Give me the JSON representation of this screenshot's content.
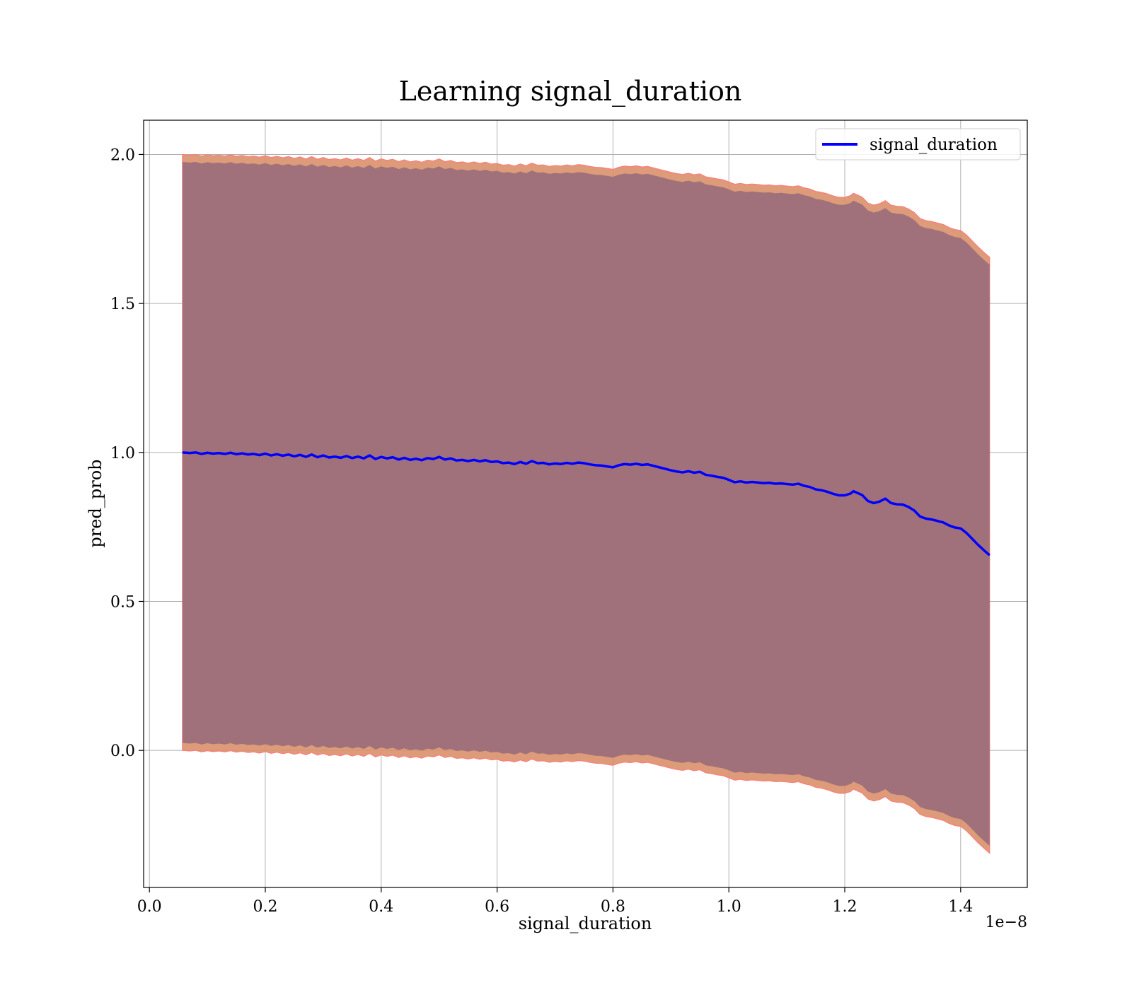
{
  "chart_data": {
    "type": "line",
    "title": "Learning signal_duration",
    "xlabel": "signal_duration",
    "ylabel": "pred_prob",
    "x_offset_text": "1e−8",
    "xlim": [
      -0.01,
      1.515
    ],
    "ylim": [
      -0.46,
      2.115
    ],
    "grid": true,
    "legend": "top-right",
    "xticks": [
      "0.0",
      "0.2",
      "0.4",
      "0.6",
      "0.8",
      "1.0",
      "1.2",
      "1.4"
    ],
    "yticks": [
      "0.0",
      "0.5",
      "1.0",
      "1.5",
      "2.0"
    ],
    "series": [
      {
        "name": "signal_duration",
        "color": "#0000ff",
        "x": [
          0.057,
          0.07,
          0.08,
          0.09,
          0.1,
          0.11,
          0.12,
          0.13,
          0.14,
          0.15,
          0.16,
          0.17,
          0.18,
          0.19,
          0.2,
          0.21,
          0.22,
          0.23,
          0.24,
          0.25,
          0.26,
          0.27,
          0.28,
          0.29,
          0.3,
          0.31,
          0.32,
          0.33,
          0.34,
          0.35,
          0.36,
          0.37,
          0.38,
          0.39,
          0.4,
          0.41,
          0.42,
          0.43,
          0.44,
          0.45,
          0.46,
          0.47,
          0.48,
          0.49,
          0.5,
          0.51,
          0.52,
          0.53,
          0.54,
          0.55,
          0.56,
          0.57,
          0.58,
          0.59,
          0.6,
          0.61,
          0.62,
          0.63,
          0.64,
          0.65,
          0.66,
          0.67,
          0.68,
          0.69,
          0.7,
          0.71,
          0.72,
          0.73,
          0.74,
          0.75,
          0.76,
          0.77,
          0.78,
          0.79,
          0.8,
          0.81,
          0.82,
          0.83,
          0.84,
          0.85,
          0.86,
          0.87,
          0.88,
          0.89,
          0.9,
          0.91,
          0.92,
          0.93,
          0.94,
          0.95,
          0.96,
          0.97,
          0.98,
          0.99,
          1.0,
          1.01,
          1.02,
          1.03,
          1.04,
          1.05,
          1.06,
          1.07,
          1.08,
          1.09,
          1.1,
          1.11,
          1.12,
          1.13,
          1.14,
          1.15,
          1.16,
          1.17,
          1.18,
          1.19,
          1.2,
          1.21,
          1.215,
          1.23,
          1.24,
          1.25,
          1.26,
          1.27,
          1.28,
          1.29,
          1.3,
          1.31,
          1.32,
          1.33,
          1.34,
          1.35,
          1.36,
          1.37,
          1.38,
          1.39,
          1.4,
          1.41,
          1.42,
          1.43,
          1.44,
          1.45
        ],
        "values": [
          1.0,
          0.998,
          1.0,
          0.995,
          0.999,
          0.996,
          0.998,
          0.995,
          0.999,
          0.994,
          0.997,
          0.993,
          0.995,
          0.991,
          0.996,
          0.99,
          0.994,
          0.989,
          0.993,
          0.987,
          0.992,
          0.985,
          0.993,
          0.984,
          0.99,
          0.983,
          0.986,
          0.982,
          0.988,
          0.981,
          0.986,
          0.98,
          0.99,
          0.978,
          0.985,
          0.98,
          0.984,
          0.976,
          0.982,
          0.975,
          0.979,
          0.974,
          0.981,
          0.978,
          0.985,
          0.976,
          0.98,
          0.973,
          0.975,
          0.971,
          0.975,
          0.97,
          0.974,
          0.968,
          0.97,
          0.964,
          0.966,
          0.961,
          0.968,
          0.962,
          0.971,
          0.964,
          0.965,
          0.96,
          0.963,
          0.961,
          0.965,
          0.962,
          0.966,
          0.964,
          0.96,
          0.957,
          0.956,
          0.953,
          0.95,
          0.957,
          0.961,
          0.959,
          0.962,
          0.958,
          0.96,
          0.955,
          0.95,
          0.945,
          0.94,
          0.936,
          0.933,
          0.937,
          0.932,
          0.935,
          0.925,
          0.922,
          0.918,
          0.915,
          0.908,
          0.9,
          0.903,
          0.899,
          0.901,
          0.899,
          0.897,
          0.898,
          0.895,
          0.896,
          0.894,
          0.892,
          0.895,
          0.888,
          0.884,
          0.876,
          0.873,
          0.868,
          0.861,
          0.856,
          0.856,
          0.862,
          0.87,
          0.857,
          0.837,
          0.83,
          0.835,
          0.845,
          0.83,
          0.826,
          0.825,
          0.817,
          0.805,
          0.785,
          0.778,
          0.775,
          0.77,
          0.765,
          0.755,
          0.748,
          0.745,
          0.73,
          0.71,
          0.69,
          0.672,
          0.655
        ]
      }
    ],
    "band": {
      "fill": "#a0717b",
      "edge": "#d9906a",
      "outer_line": "#ff7b7b",
      "upper_offset": 1.0,
      "lower_offset": -1.0
    }
  }
}
